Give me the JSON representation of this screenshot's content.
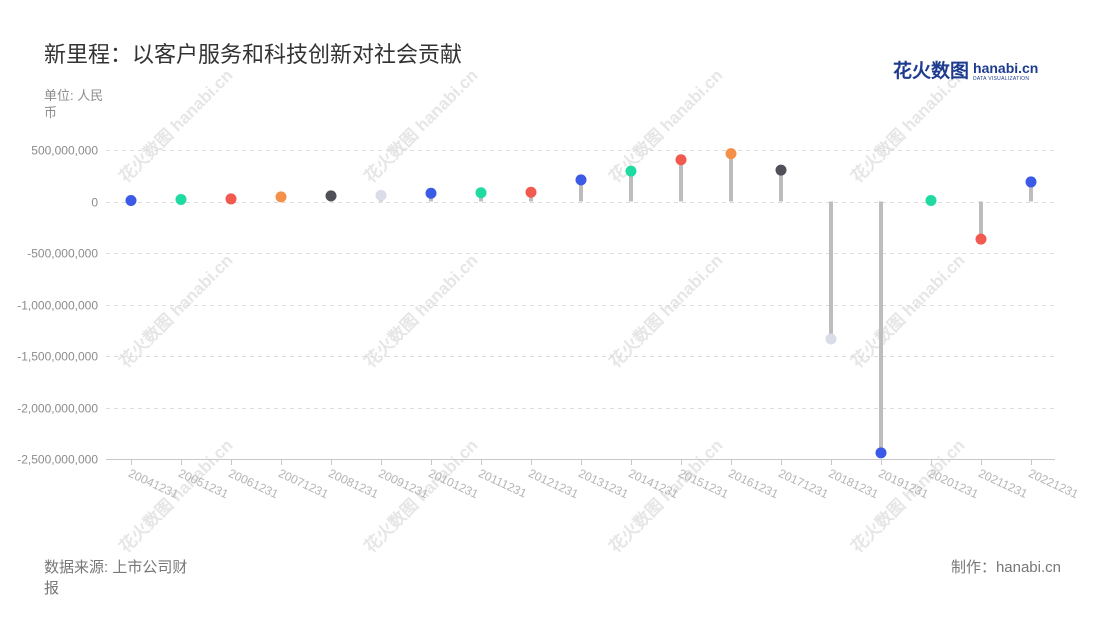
{
  "chart_data": {
    "type": "bar",
    "title": "新里程：以客户服务和科技创新对社会贡献",
    "ylabel": "单位: 人民币",
    "categories": [
      "20041231",
      "20051231",
      "20061231",
      "20071231",
      "20081231",
      "20091231",
      "20101231",
      "20111231",
      "20121231",
      "20131231",
      "20141231",
      "20151231",
      "20161231",
      "20171231",
      "20181231",
      "20191231",
      "20201231",
      "20211231",
      "20221231"
    ],
    "values": [
      10000000,
      20000000,
      25000000,
      45000000,
      55000000,
      60000000,
      80000000,
      85000000,
      90000000,
      210000000,
      295000000,
      405000000,
      465000000,
      305000000,
      -1335000000,
      -2440000000,
      10000000,
      -365000000,
      190000000
    ],
    "colors": [
      "#3b5ae6",
      "#1fdba2",
      "#f2594f",
      "#f5904a",
      "#505059",
      "#d8dde8",
      "#3b5ae6",
      "#1fdba2",
      "#f2594f",
      "#3b5ae6",
      "#1fdba2",
      "#f2594f",
      "#f5904a",
      "#505059",
      "#d8dde8",
      "#3b5ae6",
      "#1fdba2",
      "#f2594f",
      "#3b5ae6"
    ],
    "ylim": [
      -2500000000,
      500000000
    ],
    "yticks": [
      500000000,
      0,
      -500000000,
      -1000000000,
      -1500000000,
      -2000000000,
      -2500000000
    ],
    "ytick_labels": [
      "500,000,000",
      "0",
      "-500,000,000",
      "-1,000,000,000",
      "-1,500,000,000",
      "-2,000,000,000",
      "-2,500,000,000"
    ],
    "grid": true
  },
  "logo": {
    "cn": "花火数图",
    "en": "hanabi.cn",
    "tagline": "DATA VISUALIZATION"
  },
  "watermark": "花火数图 hanabi.cn",
  "footer": {
    "source": "数据来源: 上市公司财报",
    "credit": "制作：hanabi.cn"
  }
}
